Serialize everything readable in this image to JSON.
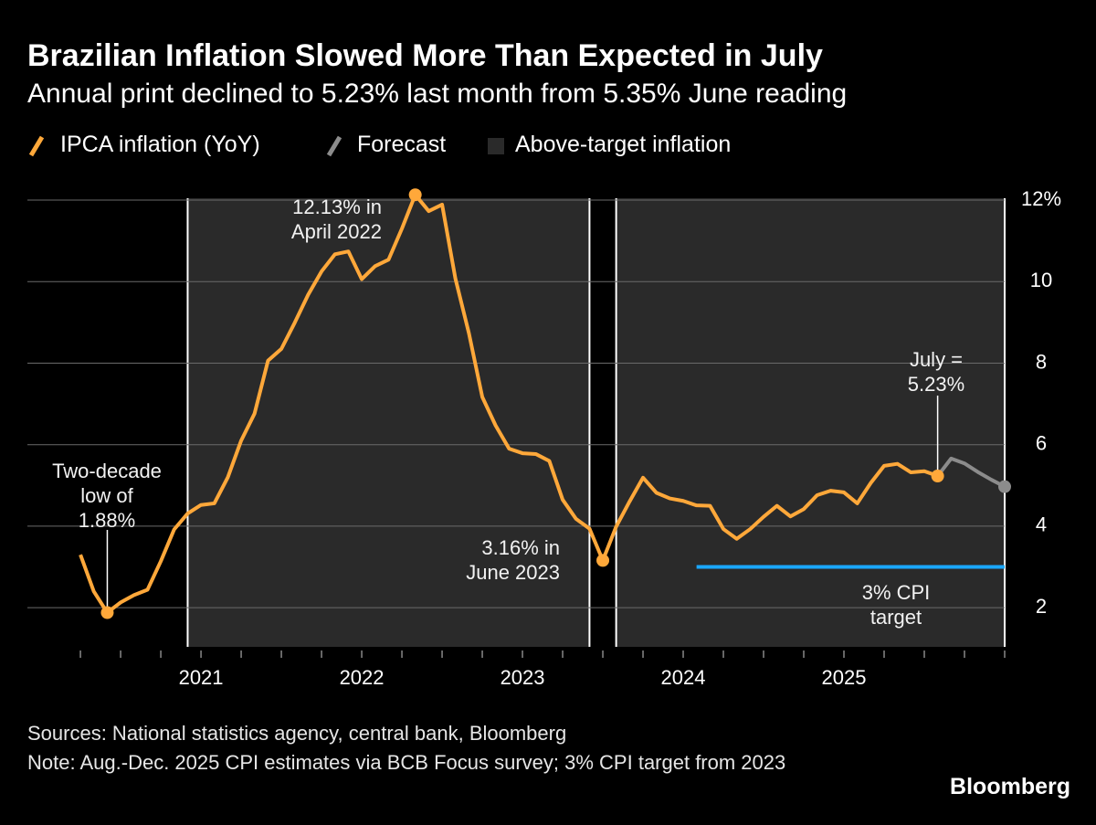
{
  "chart_data": {
    "type": "line",
    "title": "Brazilian Inflation Slowed More Than Expected in July",
    "subtitle": "Annual print declined to 5.23% last month from 5.35% June reading",
    "series": [
      {
        "name": "IPCA inflation (YoY)",
        "color": "#ffa83a",
        "x": [
          2020.25,
          2020.333,
          2020.417,
          2020.5,
          2020.583,
          2020.667,
          2020.75,
          2020.833,
          2020.917,
          2021,
          2021.083,
          2021.167,
          2021.25,
          2021.333,
          2021.417,
          2021.5,
          2021.583,
          2021.667,
          2021.75,
          2021.833,
          2021.917,
          2022,
          2022.083,
          2022.167,
          2022.25,
          2022.333,
          2022.417,
          2022.5,
          2022.583,
          2022.667,
          2022.75,
          2022.833,
          2022.917,
          2023,
          2023.083,
          2023.167,
          2023.25,
          2023.333,
          2023.417,
          2023.5,
          2023.583,
          2023.667,
          2023.75,
          2023.833,
          2023.917,
          2024,
          2024.083,
          2024.167,
          2024.25,
          2024.333,
          2024.417,
          2024.5,
          2024.583,
          2024.667,
          2024.75,
          2024.833,
          2024.917,
          2025,
          2025.083,
          2025.167,
          2025.25,
          2025.333,
          2025.417,
          2025.5,
          2025.583
        ],
        "values": [
          3.3,
          2.4,
          1.88,
          2.13,
          2.31,
          2.44,
          3.14,
          3.92,
          4.31,
          4.52,
          4.56,
          5.2,
          6.1,
          6.76,
          8.06,
          8.35,
          8.99,
          9.68,
          10.25,
          10.67,
          10.74,
          10.06,
          10.38,
          10.54,
          11.3,
          12.13,
          11.73,
          11.89,
          10.07,
          8.73,
          7.17,
          6.47,
          5.9,
          5.79,
          5.77,
          5.6,
          4.65,
          4.18,
          3.94,
          3.16,
          3.99,
          4.61,
          5.19,
          4.82,
          4.68,
          4.62,
          4.51,
          4.5,
          3.93,
          3.69,
          3.93,
          4.23,
          4.5,
          4.24,
          4.42,
          4.76,
          4.87,
          4.83,
          4.56,
          5.06,
          5.48,
          5.53,
          5.32,
          5.35,
          5.23
        ]
      },
      {
        "name": "Forecast",
        "color": "#8c8c8c",
        "marker_last": true,
        "x": [
          2025.583,
          2025.667,
          2025.75,
          2025.833,
          2025.917,
          2026
        ],
        "values": [
          5.23,
          5.66,
          5.54,
          5.33,
          5.14,
          4.97
        ]
      }
    ],
    "shaded": {
      "name": "Above-target inflation",
      "color": "#2a2a2a",
      "ranges": [
        [
          2020.917,
          2023.417
        ],
        [
          2023.583,
          2026
        ]
      ]
    },
    "target": {
      "value": 3,
      "x": [
        2024.083,
        2026
      ],
      "color": "#1aa7ff",
      "label": "3% CPI\ntarget"
    },
    "annotations": [
      {
        "text": "Two-decade\nlow of\n1.88%",
        "x": 2020.417
      },
      {
        "text": "12.13% in\nApril 2022",
        "x": 2022.333
      },
      {
        "text": "3.16% in\nJune 2023",
        "x": 2023.5
      },
      {
        "text": "July =\n5.23%",
        "x": 2025.583
      }
    ],
    "xlim": [
      2019.92,
      2026
    ],
    "xticks": [
      2021,
      2022,
      2023,
      2024,
      2025
    ],
    "xminorticks": [
      2020.25,
      2020.5,
      2020.75,
      2021,
      2021.25,
      2021.5,
      2021.75,
      2022,
      2022.25,
      2022.5,
      2022.75,
      2023,
      2023.25,
      2023.5,
      2023.75,
      2024,
      2024.25,
      2024.5,
      2024.75,
      2025,
      2025.25,
      2025.5,
      2025.75,
      2026
    ],
    "ylim": [
      1.04,
      12
    ],
    "yticks": [
      2,
      4,
      6,
      8,
      10,
      {
        "value": 12,
        "label": "12%"
      }
    ],
    "grid": true,
    "source": "Sources: National statistics agency, central bank, Bloomberg",
    "note": "Note: Aug.-Dec. 2025 CPI estimates via BCB Focus survey; 3% CPI target from 2023",
    "brand": "Bloomberg"
  }
}
